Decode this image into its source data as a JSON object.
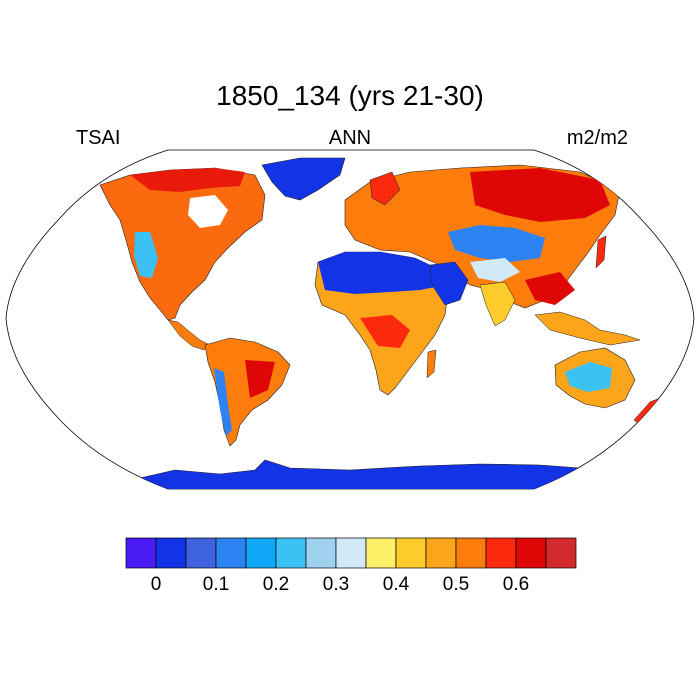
{
  "title": "1850_134 (yrs 21-30)",
  "left_string": "TSAI",
  "center_string": "ANN",
  "right_string": "m2/m2",
  "projection": "Robinson",
  "colorbar": {
    "colors": [
      "#4a1cf5",
      "#1233e6",
      "#3f63de",
      "#2d83f2",
      "#11a7f7",
      "#3cc1f5",
      "#9fd2ef",
      "#d2e9f7",
      "#fff06a",
      "#fecb2d",
      "#fca41a",
      "#fc7d0c",
      "#fb2a0e",
      "#df0606",
      "#d32b2b"
    ],
    "levels": [
      0,
      0.05,
      0.1,
      0.15,
      0.2,
      0.25,
      0.3,
      0.35,
      0.4,
      0.45,
      0.5,
      0.55,
      0.6,
      0.65
    ],
    "labels": [
      "0",
      "0.1",
      "0.2",
      "0.3",
      "0.4",
      "0.5",
      "0.6"
    ]
  },
  "regions": [
    {
      "name": "North America",
      "level": "high"
    },
    {
      "name": "Greenland",
      "level": "very low"
    },
    {
      "name": "South America",
      "level": "high"
    },
    {
      "name": "Sahara",
      "level": "very low"
    },
    {
      "name": "Arabian Peninsula",
      "level": "very low"
    },
    {
      "name": "Central Africa",
      "level": "high"
    },
    {
      "name": "Eurasia",
      "level": "high"
    },
    {
      "name": "Central Asia",
      "level": "low"
    },
    {
      "name": "Australia interior",
      "level": "low"
    },
    {
      "name": "Antarctica",
      "level": "very low"
    }
  ]
}
